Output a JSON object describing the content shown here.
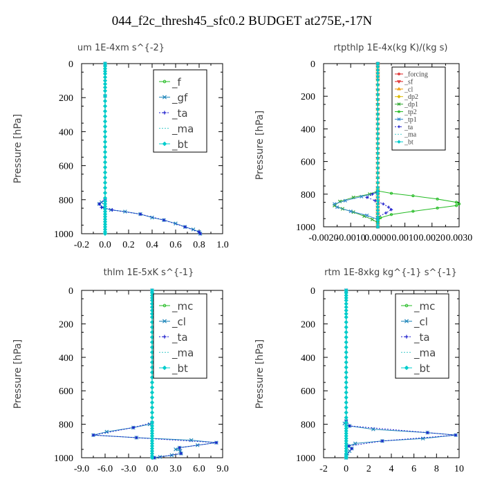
{
  "figure": {
    "title": "044_f2c_thresh45_sfc0.2  BUDGET at275E,-17N"
  },
  "chart_data": [
    {
      "type": "line",
      "title": "um   1E-4xm s^{-2}",
      "ylabel": "Pressure [hPa]",
      "xlim": [
        -0.2,
        1.0
      ],
      "ylim": [
        1000,
        0
      ],
      "xticks": [
        -0.2,
        0.0,
        0.2,
        0.4,
        0.6,
        0.8,
        1.0
      ],
      "xtick_labels": [
        "-0.2",
        "0.0",
        "0.2",
        "0.4",
        "0.6",
        "0.8",
        "1.0"
      ],
      "yticks": [
        0,
        200,
        400,
        600,
        800,
        1000
      ],
      "ytick_labels": [
        "0",
        "200",
        "400",
        "600",
        "800",
        "1000"
      ],
      "legend": {
        "position": "top-right",
        "font": "sans",
        "font_size": 15
      },
      "pressure_levels": [
        0,
        15,
        30,
        45,
        60,
        80,
        100,
        120,
        140,
        160,
        190,
        220,
        250,
        280,
        310,
        340,
        370,
        400,
        430,
        460,
        490,
        520,
        550,
        580,
        610,
        640,
        670,
        700,
        730,
        760,
        790,
        810,
        825,
        840,
        855,
        870,
        885,
        900,
        915,
        930,
        945,
        960,
        975,
        990,
        1000
      ],
      "series": [
        {
          "name": "_f",
          "color": "#22bb22",
          "marker": "circle",
          "dashed": false,
          "x": "zero"
        },
        {
          "name": "_gf",
          "color": "#2288bb",
          "marker": "cross",
          "dashed": false,
          "points": [
            [
              0.0,
              0
            ],
            [
              0.0,
              190
            ],
            [
              0.0,
              800
            ],
            [
              -0.03,
              815
            ],
            [
              -0.05,
              825
            ],
            [
              -0.02,
              845
            ],
            [
              0.05,
              860
            ],
            [
              0.17,
              870
            ],
            [
              0.3,
              885
            ],
            [
              0.4,
              905
            ],
            [
              0.5,
              920
            ],
            [
              0.6,
              940
            ],
            [
              0.68,
              960
            ],
            [
              0.75,
              975
            ],
            [
              0.8,
              990
            ],
            [
              0.81,
              1000
            ]
          ]
        },
        {
          "name": "_ta",
          "color": "#1a1acc",
          "marker": "plus",
          "dashed": true,
          "points": [
            [
              0.0,
              0
            ],
            [
              0.0,
              800
            ],
            [
              -0.05,
              825
            ],
            [
              -0.03,
              845
            ],
            [
              0.06,
              860
            ],
            [
              0.3,
              885
            ],
            [
              0.5,
              920
            ],
            [
              0.68,
              960
            ],
            [
              0.8,
              990
            ],
            [
              0.81,
              1000
            ]
          ]
        },
        {
          "name": "_ma",
          "color": "#44cccc",
          "marker": "none",
          "dashed": true,
          "x": "zero"
        },
        {
          "name": "_bt",
          "color": "#00cccc",
          "marker": "diamond",
          "dashed": false,
          "x": "zero"
        }
      ]
    },
    {
      "type": "line",
      "title": "rtpthlp   1E-4x(kg K)/(kg s)",
      "ylabel": "Pressure [hPa]",
      "xlim": [
        -0.002,
        0.003
      ],
      "ylim": [
        1000,
        0
      ],
      "xticks": [
        -0.002,
        -0.001,
        0.0,
        0.001,
        0.002,
        0.003
      ],
      "xtick_labels": [
        "-0.0020",
        "-0.0010",
        "0.0000",
        "0.0010",
        "0.0020",
        "0.0030"
      ],
      "yticks": [
        0,
        200,
        400,
        600,
        800,
        1000
      ],
      "ytick_labels": [
        "0",
        "200",
        "400",
        "600",
        "800",
        "1000"
      ],
      "legend": {
        "position": "top-right",
        "font": "serif",
        "font_size": 10
      },
      "pressure_levels": [
        0,
        20,
        40,
        60,
        80,
        100,
        130,
        160,
        190,
        220,
        250,
        280,
        310,
        340,
        370,
        400,
        430,
        460,
        490,
        520,
        550,
        580,
        610,
        640,
        670,
        700,
        730,
        760,
        780,
        800,
        820,
        840,
        860,
        880,
        900,
        920,
        940,
        960,
        980,
        1000
      ],
      "series": [
        {
          "name": "_forcing",
          "color": "#dd2222",
          "marker": "circle",
          "dashed": false,
          "x": "zero"
        },
        {
          "name": "_sf",
          "color": "#dd2222",
          "marker": "triangle-down",
          "dashed": false,
          "x": "zero"
        },
        {
          "name": "_cl",
          "color": "#ee9900",
          "marker": "triangle-up",
          "dashed": false,
          "x": "zero"
        },
        {
          "name": "_dp2",
          "color": "#ddbb00",
          "marker": "diamond",
          "dashed": false,
          "x": "zero"
        },
        {
          "name": "_dp1",
          "color": "#33aa33",
          "marker": "cross",
          "dashed": false,
          "points": [
            [
              0.0,
              0
            ],
            [
              0.0,
              780
            ],
            [
              -0.0003,
              800
            ],
            [
              -0.0009,
              820
            ],
            [
              -0.0014,
              845
            ],
            [
              -0.0016,
              870
            ],
            [
              -0.0013,
              890
            ],
            [
              -0.0009,
              910
            ],
            [
              -0.0005,
              935
            ],
            [
              -0.0002,
              955
            ],
            [
              0.0,
              975
            ],
            [
              0.0,
              1000
            ]
          ]
        },
        {
          "name": "_tp2",
          "color": "#22bb22",
          "marker": "circle",
          "dashed": false,
          "points": [
            [
              0.0,
              0
            ],
            [
              0.0,
              780
            ],
            [
              0.0005,
              795
            ],
            [
              0.0013,
              810
            ],
            [
              0.0022,
              830
            ],
            [
              0.0029,
              850
            ],
            [
              0.003,
              860
            ],
            [
              0.0029,
              870
            ],
            [
              0.0022,
              885
            ],
            [
              0.0013,
              905
            ],
            [
              0.0005,
              925
            ],
            [
              0.0001,
              945
            ],
            [
              0.0,
              965
            ],
            [
              0.0,
              1000
            ]
          ]
        },
        {
          "name": "_tp1",
          "color": "#3388cc",
          "marker": "cross",
          "dashed": false,
          "points": [
            [
              0.0,
              0
            ],
            [
              0.0,
              790
            ],
            [
              -0.0006,
              815
            ],
            [
              -0.0012,
              840
            ],
            [
              -0.0016,
              860
            ],
            [
              -0.0015,
              880
            ],
            [
              -0.001,
              905
            ],
            [
              -0.0004,
              930
            ],
            [
              0.0,
              955
            ],
            [
              0.0,
              1000
            ]
          ]
        },
        {
          "name": "_ta",
          "color": "#1a1acc",
          "marker": "plus",
          "dashed": true,
          "points": [
            [
              0.0,
              0
            ],
            [
              0.0,
              785
            ],
            [
              -0.0002,
              800
            ],
            [
              -0.0004,
              820
            ],
            [
              -0.0001,
              840
            ],
            [
              0.0002,
              860
            ],
            [
              0.0004,
              880
            ],
            [
              0.0005,
              895
            ],
            [
              0.0003,
              915
            ],
            [
              0.0,
              940
            ],
            [
              0.0,
              1000
            ]
          ]
        },
        {
          "name": "_ma",
          "color": "#44cccc",
          "marker": "none",
          "dashed": true,
          "x": "zero"
        },
        {
          "name": "_bt",
          "color": "#00cccc",
          "marker": "diamond",
          "dashed": false,
          "x": "zero"
        }
      ]
    },
    {
      "type": "line",
      "title": "thlm   1E-5xK s^{-1}",
      "ylabel": "Pressure [hPa]",
      "xlim": [
        -9.0,
        9.0
      ],
      "ylim": [
        1000,
        0
      ],
      "xticks": [
        -9.0,
        -6.0,
        -3.0,
        0.0,
        3.0,
        6.0,
        9.0
      ],
      "xtick_labels": [
        "-9.0",
        "-6.0",
        "-3.0",
        "0.0",
        "3.0",
        "6.0",
        "9.0"
      ],
      "yticks": [
        0,
        200,
        400,
        600,
        800,
        1000
      ],
      "ytick_labels": [
        "0",
        "200",
        "400",
        "600",
        "800",
        "1000"
      ],
      "legend": {
        "position": "top-right",
        "font": "sans",
        "font_size": 15
      },
      "pressure_levels": [
        0,
        15,
        30,
        45,
        60,
        80,
        100,
        120,
        140,
        160,
        190,
        220,
        250,
        280,
        310,
        340,
        370,
        400,
        430,
        460,
        490,
        520,
        550,
        580,
        610,
        640,
        670,
        700,
        730,
        760,
        790,
        810,
        825,
        840,
        855,
        870,
        885,
        900,
        915,
        930,
        945,
        960,
        975,
        990,
        1000
      ],
      "series": [
        {
          "name": "_mc",
          "color": "#22bb22",
          "marker": "circle",
          "dashed": false,
          "x": "zero"
        },
        {
          "name": "_cl",
          "color": "#2288bb",
          "marker": "cross",
          "dashed": false,
          "points": [
            [
              0.0,
              0
            ],
            [
              0.0,
              790
            ],
            [
              -0.3,
              800
            ],
            [
              -2.4,
              820
            ],
            [
              -5.8,
              845
            ],
            [
              -7.5,
              865
            ],
            [
              -2.0,
              880
            ],
            [
              5.0,
              895
            ],
            [
              8.2,
              910
            ],
            [
              5.8,
              925
            ],
            [
              3.5,
              940
            ],
            [
              3.0,
              950
            ],
            [
              3.6,
              960
            ],
            [
              3.7,
              975
            ],
            [
              2.5,
              985
            ],
            [
              1.0,
              995
            ],
            [
              0.3,
              1000
            ]
          ]
        },
        {
          "name": "_ta",
          "color": "#1a1acc",
          "marker": "plus",
          "dashed": true,
          "points": [
            [
              0.0,
              0
            ],
            [
              0.0,
              790
            ],
            [
              -2.4,
              820
            ],
            [
              -7.5,
              865
            ],
            [
              -2.0,
              880
            ],
            [
              8.2,
              910
            ],
            [
              3.5,
              940
            ],
            [
              3.7,
              975
            ],
            [
              0.3,
              1000
            ]
          ]
        },
        {
          "name": "_ma",
          "color": "#44cccc",
          "marker": "none",
          "dashed": true,
          "x": "zero"
        },
        {
          "name": "_bt",
          "color": "#00cccc",
          "marker": "diamond",
          "dashed": false,
          "x": "zero"
        }
      ]
    },
    {
      "type": "line",
      "title": "rtm   1E-8xkg kg^{-1} s^{-1}",
      "ylabel": "Pressure [hPa]",
      "xlim": [
        -2,
        10
      ],
      "ylim": [
        1000,
        0
      ],
      "xticks": [
        -2,
        0,
        2,
        4,
        6,
        8,
        10
      ],
      "xtick_labels": [
        "-2",
        "0",
        "2",
        "4",
        "6",
        "8",
        "10"
      ],
      "yticks": [
        0,
        200,
        400,
        600,
        800,
        1000
      ],
      "ytick_labels": [
        "0",
        "200",
        "400",
        "600",
        "800",
        "1000"
      ],
      "legend": {
        "position": "top-right",
        "font": "sans",
        "font_size": 15
      },
      "pressure_levels": [
        0,
        15,
        30,
        45,
        60,
        80,
        100,
        120,
        140,
        160,
        190,
        220,
        250,
        280,
        310,
        340,
        370,
        400,
        430,
        460,
        490,
        520,
        550,
        580,
        610,
        640,
        670,
        700,
        730,
        760,
        790,
        810,
        825,
        840,
        855,
        870,
        885,
        900,
        915,
        930,
        945,
        960,
        975,
        990,
        1000
      ],
      "series": [
        {
          "name": "_mc",
          "color": "#22bb22",
          "marker": "circle",
          "dashed": false,
          "x": "zero"
        },
        {
          "name": "_cl",
          "color": "#2288bb",
          "marker": "cross",
          "dashed": false,
          "points": [
            [
              0.0,
              0
            ],
            [
              0.0,
              780
            ],
            [
              -0.15,
              795
            ],
            [
              0.3,
              810
            ],
            [
              2.4,
              830
            ],
            [
              7.2,
              850
            ],
            [
              9.7,
              865
            ],
            [
              6.8,
              885
            ],
            [
              3.2,
              900
            ],
            [
              0.8,
              915
            ],
            [
              0.2,
              930
            ],
            [
              0.5,
              945
            ],
            [
              0.3,
              960
            ],
            [
              0.1,
              975
            ],
            [
              0.0,
              990
            ],
            [
              0.0,
              1000
            ]
          ]
        },
        {
          "name": "_ta",
          "color": "#1a1acc",
          "marker": "plus",
          "dashed": true,
          "points": [
            [
              0.0,
              0
            ],
            [
              0.0,
              780
            ],
            [
              0.3,
              810
            ],
            [
              7.2,
              850
            ],
            [
              9.7,
              865
            ],
            [
              3.2,
              900
            ],
            [
              0.2,
              930
            ],
            [
              0.5,
              945
            ],
            [
              0.0,
              990
            ],
            [
              0.0,
              1000
            ]
          ]
        },
        {
          "name": "_ma",
          "color": "#44cccc",
          "marker": "none",
          "dashed": true,
          "x": "zero"
        },
        {
          "name": "_bt",
          "color": "#00cccc",
          "marker": "diamond",
          "dashed": false,
          "x": "zero"
        }
      ]
    }
  ]
}
